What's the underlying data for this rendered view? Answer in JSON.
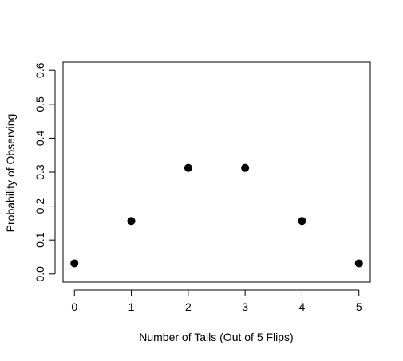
{
  "chart_data": {
    "type": "scatter",
    "title": "",
    "xlabel": "Number of Tails (Out of 5 Flips)",
    "ylabel": "Probability of Observing",
    "x": [
      0,
      1,
      2,
      3,
      4,
      5
    ],
    "y": [
      0.03125,
      0.15625,
      0.3125,
      0.3125,
      0.15625,
      0.03125
    ],
    "xlim": [
      -0.2,
      5.2
    ],
    "ylim": [
      -0.024,
      0.624
    ],
    "xticks": [
      0,
      1,
      2,
      3,
      4,
      5
    ],
    "xtick_labels": [
      "0",
      "1",
      "2",
      "3",
      "4",
      "5"
    ],
    "yticks": [
      0.0,
      0.1,
      0.2,
      0.3,
      0.4,
      0.5,
      0.6
    ],
    "ytick_labels": [
      "0.0",
      "0.1",
      "0.2",
      "0.3",
      "0.4",
      "0.5",
      "0.6"
    ],
    "grid": false,
    "marker": "filled-circle",
    "marker_color": "#000000"
  }
}
